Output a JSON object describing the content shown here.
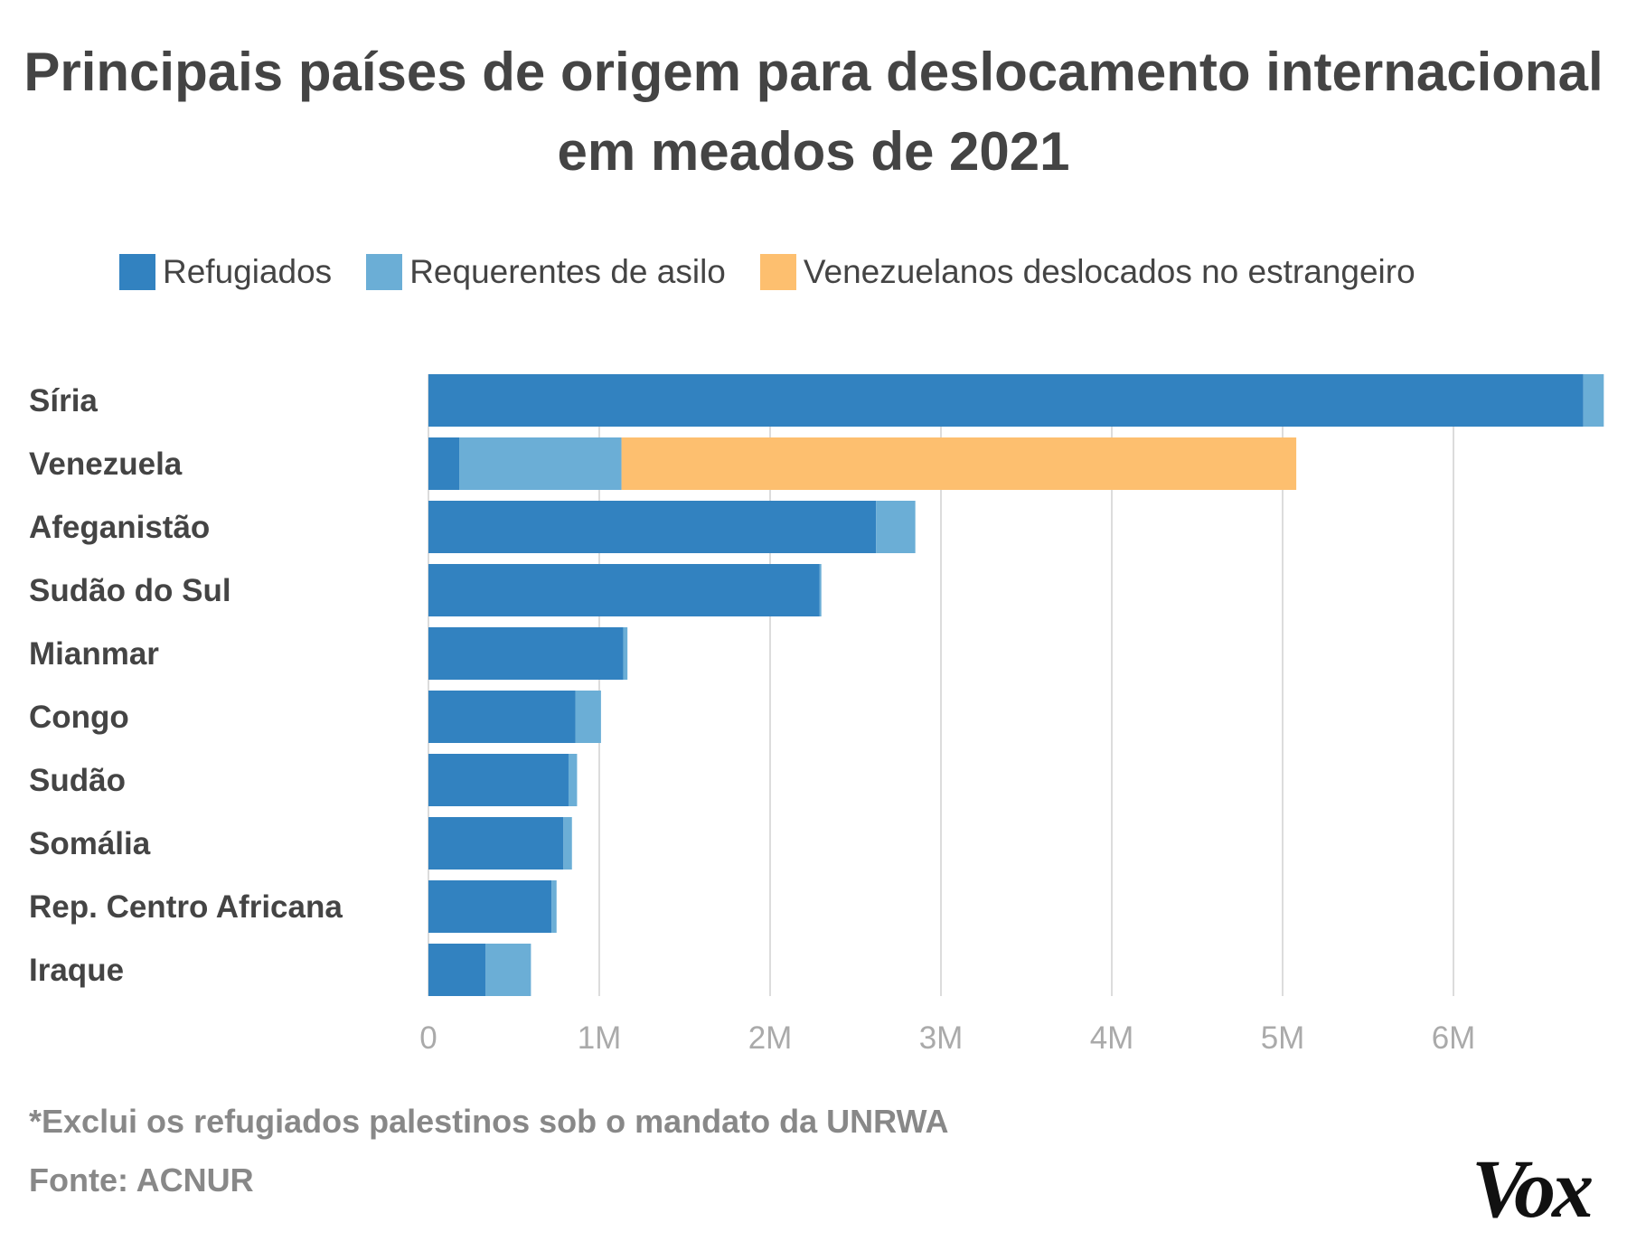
{
  "chart_data": {
    "type": "bar",
    "orientation": "horizontal",
    "stacked": true,
    "title": "Principais países de origem para deslocamento internacional em meados de 2021",
    "categories": [
      "Síria",
      "Venezuela",
      "Afeganistão",
      "Sudão do Sul",
      "Mianmar",
      "Congo",
      "Sudão",
      "Somália",
      "Rep. Centro Africana",
      "Iraque"
    ],
    "series": [
      {
        "name": "Refugiados",
        "color": "#3282c0",
        "values": [
          6.76,
          0.18,
          2.62,
          2.29,
          1.14,
          0.86,
          0.82,
          0.79,
          0.72,
          0.335
        ]
      },
      {
        "name": "Requerentes de asilo",
        "color": "#6baed6",
        "values": [
          0.12,
          0.95,
          0.23,
          0.01,
          0.025,
          0.15,
          0.05,
          0.05,
          0.03,
          0.265
        ]
      },
      {
        "name": "Venezuelanos deslocados no estrangeiro",
        "color": "#fdbf6f",
        "values": [
          0,
          3.95,
          0,
          0,
          0,
          0,
          0,
          0,
          0,
          0
        ]
      }
    ],
    "unit": "millions",
    "xlim": [
      0,
      6.88
    ],
    "xticks": [
      0,
      1,
      2,
      3,
      4,
      5,
      6
    ],
    "xtick_labels": [
      "0",
      "1M",
      "2M",
      "3M",
      "4M",
      "5M",
      "6M"
    ],
    "grid": true,
    "legend_position": "top"
  },
  "footnote": "*Exclui os refugiados palestinos sob o mandato da UNRWA",
  "source": "Fonte: ACNUR",
  "logo": "Vox"
}
